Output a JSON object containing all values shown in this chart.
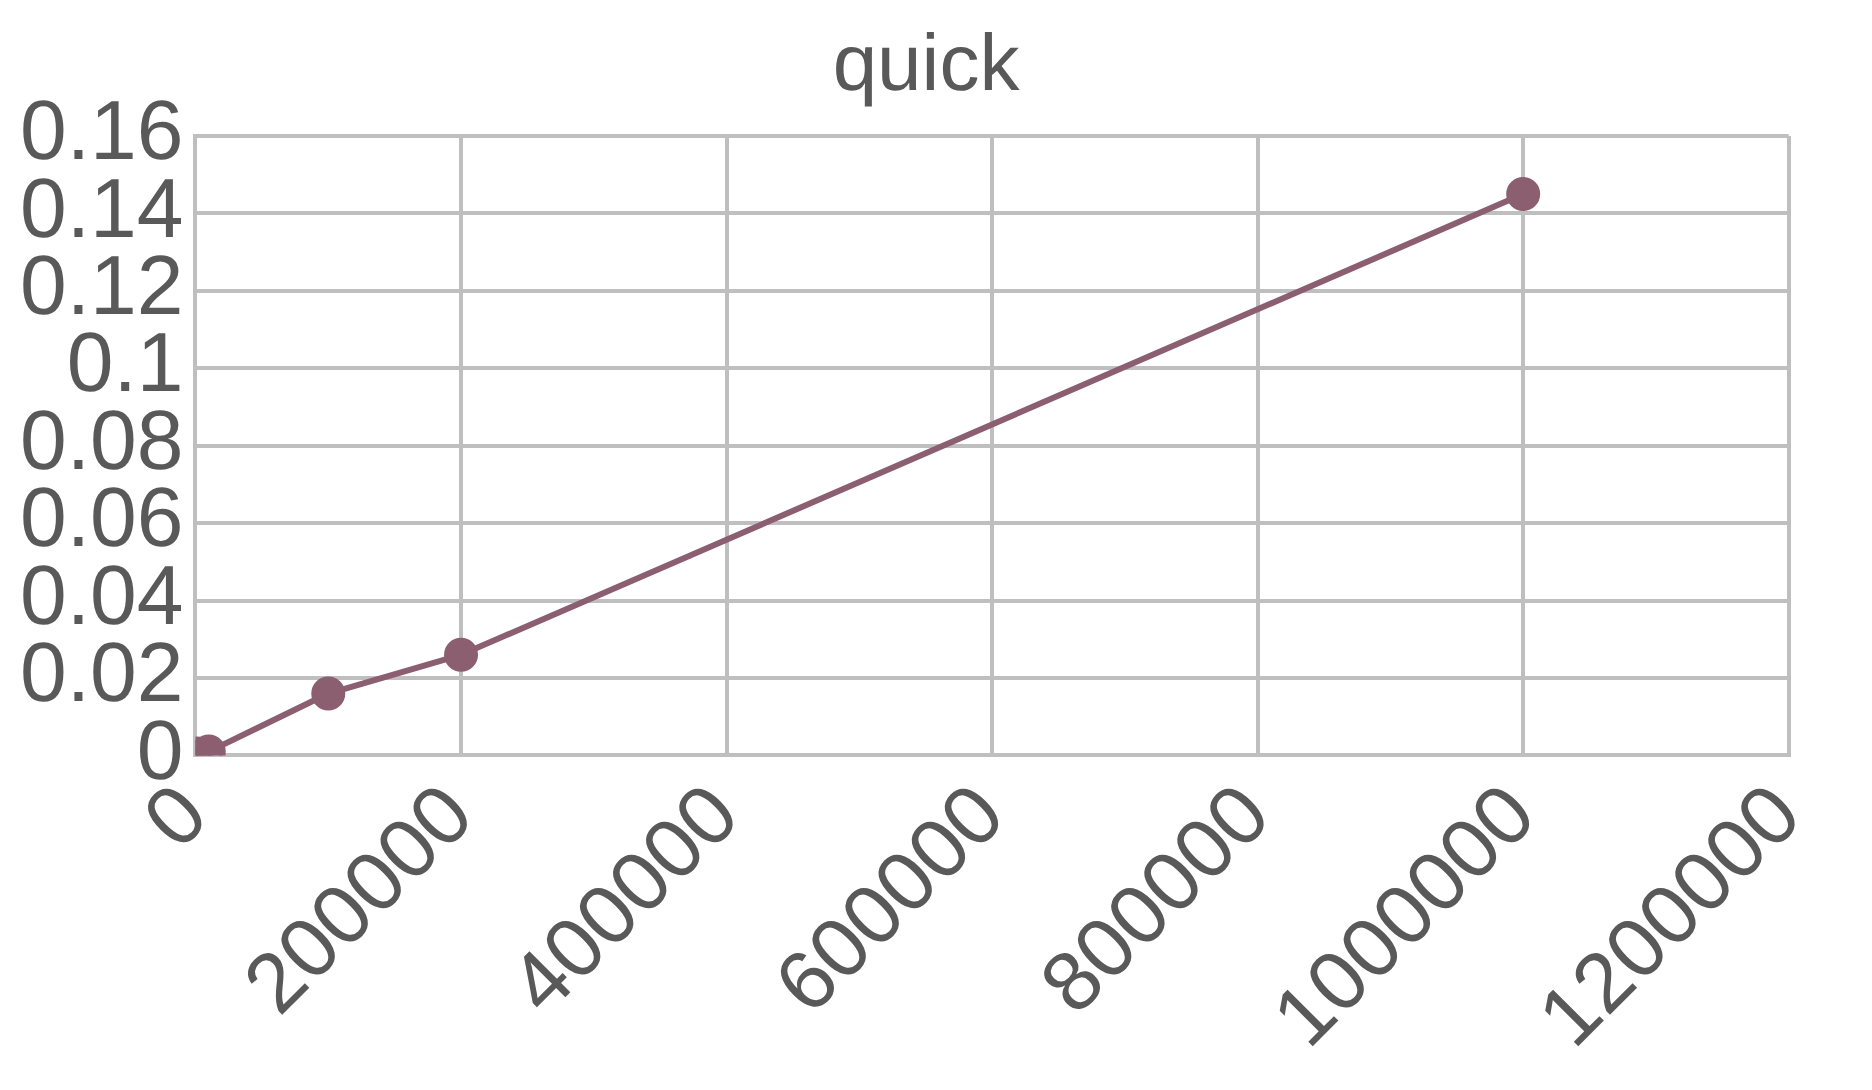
{
  "chart_data": {
    "type": "line",
    "title": "quick",
    "x": [
      1000,
      10000,
      100000,
      200000,
      1000000
    ],
    "series": [
      {
        "color": "#8b5f6f",
        "values": [
          0.0005,
          0.001,
          0.016,
          0.026,
          0.145
        ]
      }
    ],
    "xlim": [
      0,
      1200000
    ],
    "xticks": [
      0,
      200000,
      400000,
      600000,
      800000,
      1000000,
      1200000
    ],
    "ylim": [
      0,
      0.16
    ],
    "yticks": [
      0,
      0.02,
      0.04,
      0.06,
      0.08,
      0.1,
      0.12,
      0.14,
      0.16
    ],
    "grid": true,
    "legend": false,
    "marker": "circle",
    "line_style": "solid"
  }
}
